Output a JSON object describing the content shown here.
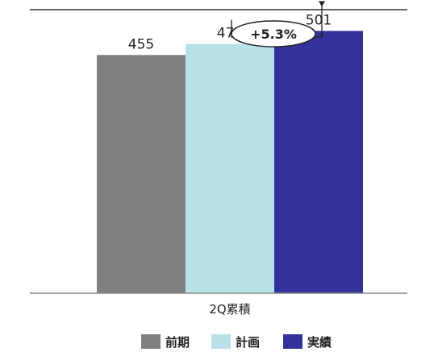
{
  "chart_data": {
    "type": "bar",
    "category_label": "2Q累積",
    "series": [
      {
        "name": "前期",
        "value": 455,
        "color": "#808080"
      },
      {
        "name": "計画",
        "value": 476,
        "color": "#b9e2e8"
      },
      {
        "name": "実績",
        "value": 501,
        "color": "#333399"
      }
    ],
    "annotation": {
      "text": "+5.3%",
      "from_series": "計画",
      "to_series": "実績"
    },
    "ylim": [
      0,
      560
    ],
    "grid": false,
    "legend_position": "bottom"
  }
}
